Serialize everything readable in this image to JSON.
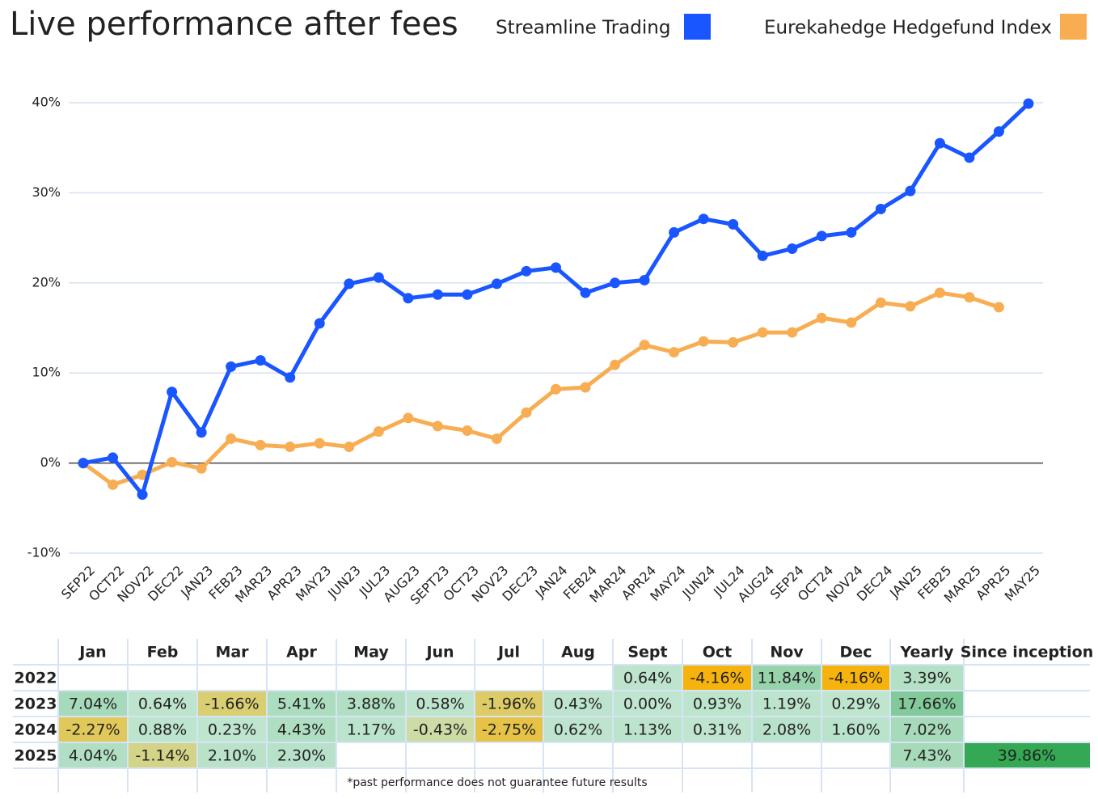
{
  "chart_data": {
    "type": "line",
    "title": "Live performance after fees",
    "categories": [
      "SEP22",
      "OCT22",
      "NOV22",
      "DEC22",
      "JAN23",
      "FEB23",
      "MAR23",
      "APR23",
      "MAY23",
      "JUN23",
      "JUL23",
      "AUG23",
      "SEPT23",
      "OCT23",
      "NOV23",
      "DEC23",
      "JAN24",
      "FEB24",
      "MAR24",
      "APR24",
      "MAY24",
      "JUN24",
      "JUL24",
      "AUG24",
      "SEP24",
      "OCT24",
      "NOV24",
      "DEC24",
      "JAN25",
      "FEB25",
      "MAR25",
      "APR25",
      "MAY25"
    ],
    "series": [
      {
        "name": "Streamline Trading",
        "color": "#1a56ff",
        "values": [
          0,
          0.6,
          -3.5,
          7.9,
          3.4,
          10.7,
          11.4,
          9.5,
          15.5,
          19.9,
          20.6,
          18.3,
          18.7,
          18.7,
          19.9,
          21.3,
          21.7,
          18.9,
          20.0,
          20.3,
          25.6,
          27.1,
          26.5,
          23.0,
          23.8,
          25.2,
          25.6,
          28.2,
          30.2,
          35.5,
          33.9,
          36.8,
          39.9
        ]
      },
      {
        "name": "Eurekahedge Hedgefund Index",
        "color": "#f8ad52",
        "values": [
          0,
          -2.4,
          -1.3,
          0.1,
          -0.6,
          2.7,
          2.0,
          1.8,
          2.2,
          1.8,
          3.5,
          5.0,
          4.1,
          3.6,
          2.7,
          5.6,
          8.2,
          8.4,
          10.9,
          13.1,
          12.3,
          13.5,
          13.4,
          14.5,
          14.5,
          16.1,
          15.6,
          17.8,
          17.4,
          18.9,
          18.4,
          17.3,
          null
        ]
      }
    ],
    "ylim": [
      -10,
      40
    ],
    "yticks": [
      {
        "value": -10,
        "label": "-10%"
      },
      {
        "value": 0,
        "label": "0%"
      },
      {
        "value": 10,
        "label": "10%"
      },
      {
        "value": 20,
        "label": "20%"
      },
      {
        "value": 30,
        "label": "30%"
      },
      {
        "value": 40,
        "label": "40%"
      }
    ],
    "grid": true
  },
  "table": {
    "columns": [
      "Jan",
      "Feb",
      "Mar",
      "Apr",
      "May",
      "Jun",
      "Jul",
      "Aug",
      "Sept",
      "Oct",
      "Nov",
      "Dec",
      "Yearly",
      "Since inception"
    ],
    "rows": [
      {
        "year": "2022",
        "cells": [
          null,
          null,
          null,
          null,
          null,
          null,
          null,
          null,
          "0.64%",
          "-4.16%",
          "11.84%",
          "-4.16%",
          "3.39%",
          null
        ]
      },
      {
        "year": "2023",
        "cells": [
          "7.04%",
          "0.64%",
          "-1.66%",
          "5.41%",
          "3.88%",
          "0.58%",
          "-1.96%",
          "0.43%",
          "0.00%",
          "0.93%",
          "1.19%",
          "0.29%",
          "17.66%",
          null
        ]
      },
      {
        "year": "2024",
        "cells": [
          "-2.27%",
          "0.88%",
          "0.23%",
          "4.43%",
          "1.17%",
          "-0.43%",
          "-2.75%",
          "0.62%",
          "1.13%",
          "0.31%",
          "2.08%",
          "1.60%",
          "7.02%",
          null
        ]
      },
      {
        "year": "2025",
        "cells": [
          "4.04%",
          "-1.14%",
          "2.10%",
          "2.30%",
          null,
          null,
          null,
          null,
          null,
          null,
          null,
          null,
          "7.43%",
          "39.86%"
        ]
      }
    ],
    "footnote": "*past performance does not guarantee future results"
  }
}
